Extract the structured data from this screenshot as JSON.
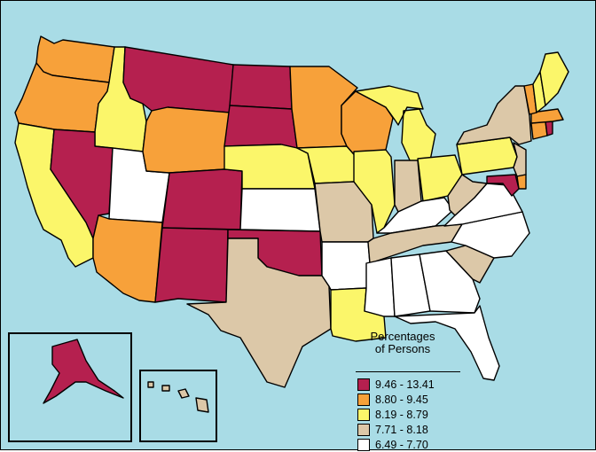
{
  "legend": {
    "title_line1": "Percentages",
    "title_line2": "of Persons",
    "items": [
      {
        "label": "9.46 - 13.41",
        "color": "#b5204f"
      },
      {
        "label": "8.80 - 9.45",
        "color": "#f7a13a"
      },
      {
        "label": "8.19 - 8.79",
        "color": "#fbf66a"
      },
      {
        "label": "7.71 - 8.18",
        "color": "#dcc8a8"
      },
      {
        "label": "6.49 - 7.70",
        "color": "#ffffff"
      }
    ]
  },
  "colors": {
    "water": "#a9dce6",
    "border": "#000000"
  },
  "states": [
    {
      "code": "WA",
      "class": 1
    },
    {
      "code": "OR",
      "class": 1
    },
    {
      "code": "CA",
      "class": 2
    },
    {
      "code": "ID",
      "class": 2
    },
    {
      "code": "NV",
      "class": 0
    },
    {
      "code": "UT",
      "class": 4
    },
    {
      "code": "AZ",
      "class": 1
    },
    {
      "code": "MT",
      "class": 0
    },
    {
      "code": "WY",
      "class": 1
    },
    {
      "code": "CO",
      "class": 0
    },
    {
      "code": "NM",
      "class": 0
    },
    {
      "code": "ND",
      "class": 0
    },
    {
      "code": "SD",
      "class": 0
    },
    {
      "code": "NE",
      "class": 2
    },
    {
      "code": "KS",
      "class": 4
    },
    {
      "code": "OK",
      "class": 0
    },
    {
      "code": "TX",
      "class": 3
    },
    {
      "code": "MN",
      "class": 1
    },
    {
      "code": "IA",
      "class": 2
    },
    {
      "code": "MO",
      "class": 3
    },
    {
      "code": "AR",
      "class": 4
    },
    {
      "code": "LA",
      "class": 2
    },
    {
      "code": "WI",
      "class": 1
    },
    {
      "code": "IL",
      "class": 2
    },
    {
      "code": "MI",
      "class": 2
    },
    {
      "code": "IN",
      "class": 3
    },
    {
      "code": "OH",
      "class": 2
    },
    {
      "code": "KY",
      "class": 4
    },
    {
      "code": "TN",
      "class": 3
    },
    {
      "code": "MS",
      "class": 4
    },
    {
      "code": "AL",
      "class": 4
    },
    {
      "code": "GA",
      "class": 4
    },
    {
      "code": "FL",
      "class": 4
    },
    {
      "code": "SC",
      "class": 3
    },
    {
      "code": "NC",
      "class": 4
    },
    {
      "code": "VA",
      "class": 4
    },
    {
      "code": "WV",
      "class": 3
    },
    {
      "code": "PA",
      "class": 2
    },
    {
      "code": "NY",
      "class": 3
    },
    {
      "code": "NJ",
      "class": 3
    },
    {
      "code": "DE",
      "class": 1
    },
    {
      "code": "MD",
      "class": 0
    },
    {
      "code": "CT",
      "class": 1
    },
    {
      "code": "RI",
      "class": 0
    },
    {
      "code": "MA",
      "class": 1
    },
    {
      "code": "VT",
      "class": 1
    },
    {
      "code": "NH",
      "class": 2
    },
    {
      "code": "ME",
      "class": 2
    },
    {
      "code": "AK",
      "class": 0
    },
    {
      "code": "HI",
      "class": 3
    }
  ]
}
